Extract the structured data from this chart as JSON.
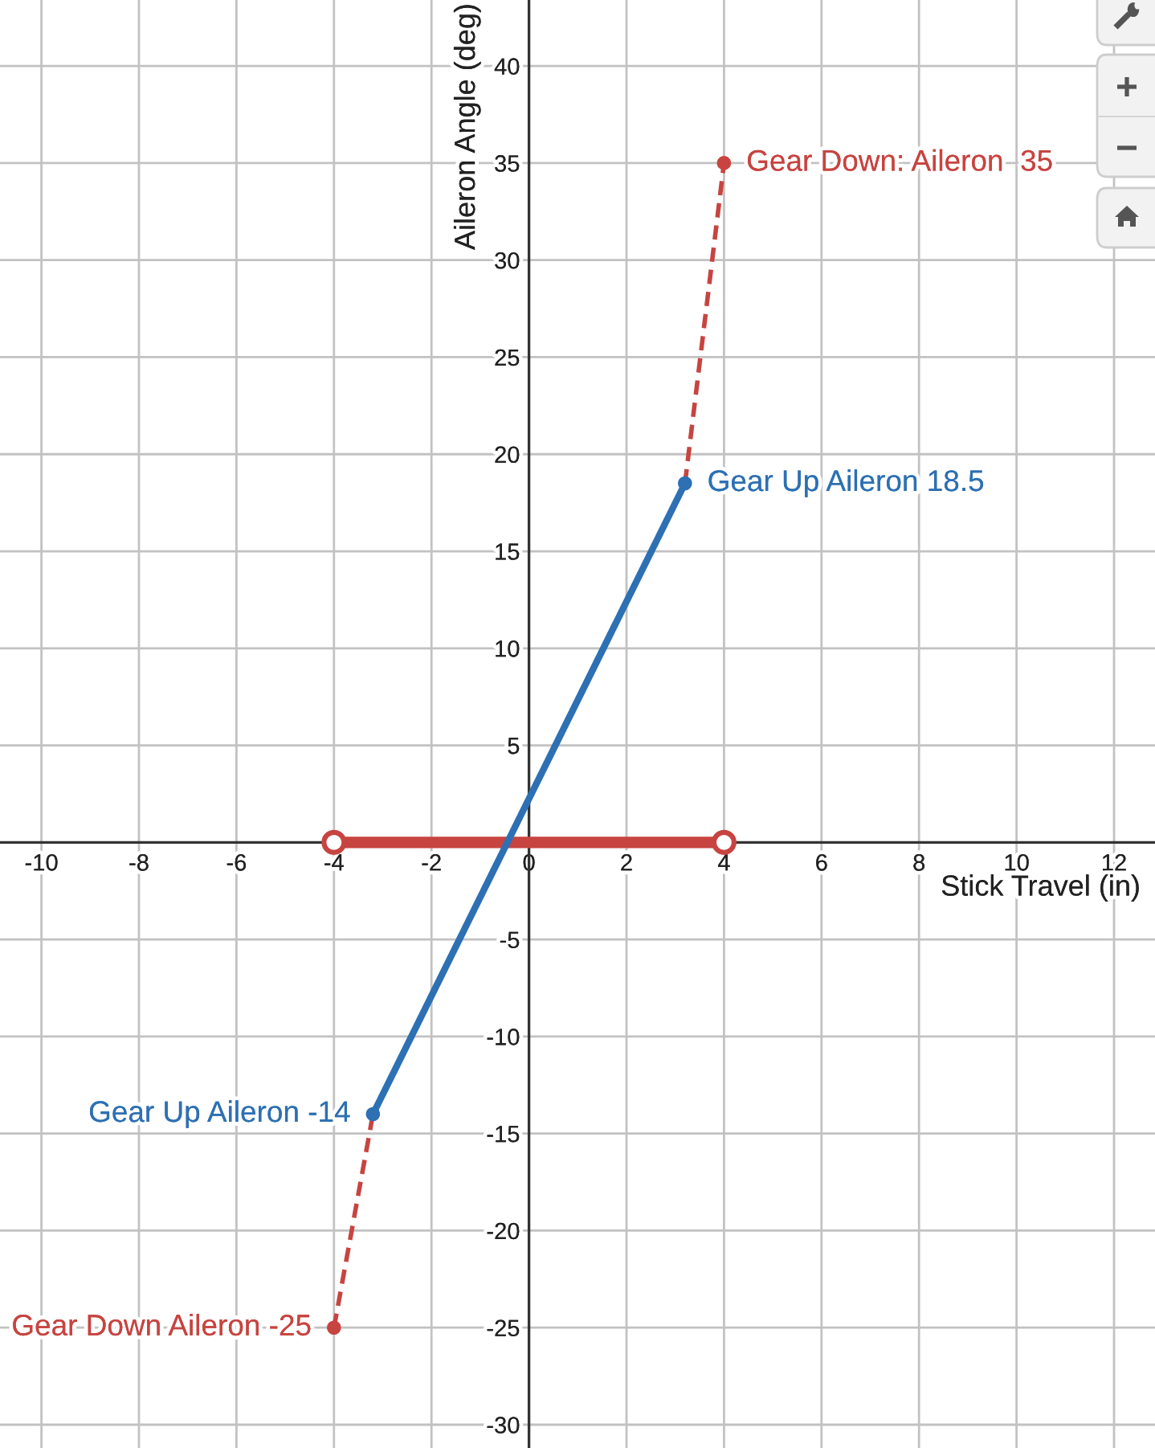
{
  "chart_data": {
    "type": "line",
    "xlabel": "Stick Travel (in)",
    "ylabel": "Aileron Angle (deg)",
    "xlim": [
      -10.85,
      12.84
    ],
    "ylim": [
      -31.2,
      43.4
    ],
    "xticks": [
      -10,
      -8,
      -6,
      -4,
      -2,
      0,
      2,
      4,
      6,
      8,
      10,
      12
    ],
    "yticks": [
      -30,
      -25,
      -20,
      -15,
      -10,
      -5,
      {
        "value": 0,
        "label": null
      },
      5,
      10,
      15,
      20,
      25,
      30,
      35,
      40
    ],
    "grid": true,
    "series": [
      {
        "color": "#c74440",
        "x": [
          -4,
          -3.2
        ],
        "values": [
          -25,
          -14
        ],
        "line_style": "dashed"
      },
      {
        "color": "#c74440",
        "x": [
          3.2,
          4
        ],
        "values": [
          18.5,
          35
        ],
        "line_style": "dashed"
      },
      {
        "color": "#c74440",
        "x": [
          -4,
          4
        ],
        "values": [
          0,
          0
        ],
        "marker": "circle"
      },
      {
        "color": "#2d70b3",
        "x": [
          -3.2,
          3.2
        ],
        "values": [
          -14,
          18.5
        ]
      },
      {
        "type": "scatter",
        "color": "#2d70b3",
        "x": [
          -3.2,
          3.2
        ],
        "values": [
          -14,
          18.5
        ],
        "marker": "circle"
      },
      {
        "type": "scatter",
        "color": "#c74440",
        "x": [
          -4,
          4
        ],
        "values": [
          -25,
          35
        ],
        "marker": "circle"
      }
    ],
    "annotations": [
      {
        "text": "Gear Down: Aileron  35",
        "x": 4,
        "y": 35
      },
      {
        "text": "Gear Up Aileron 18.5",
        "x": 3.2,
        "y": 18.5
      },
      {
        "text": "Gear Up Aileron -14",
        "x": -3.2,
        "y": -14
      },
      {
        "text": "Gear Down Aileron -25",
        "x": -4,
        "y": -25
      }
    ]
  }
}
